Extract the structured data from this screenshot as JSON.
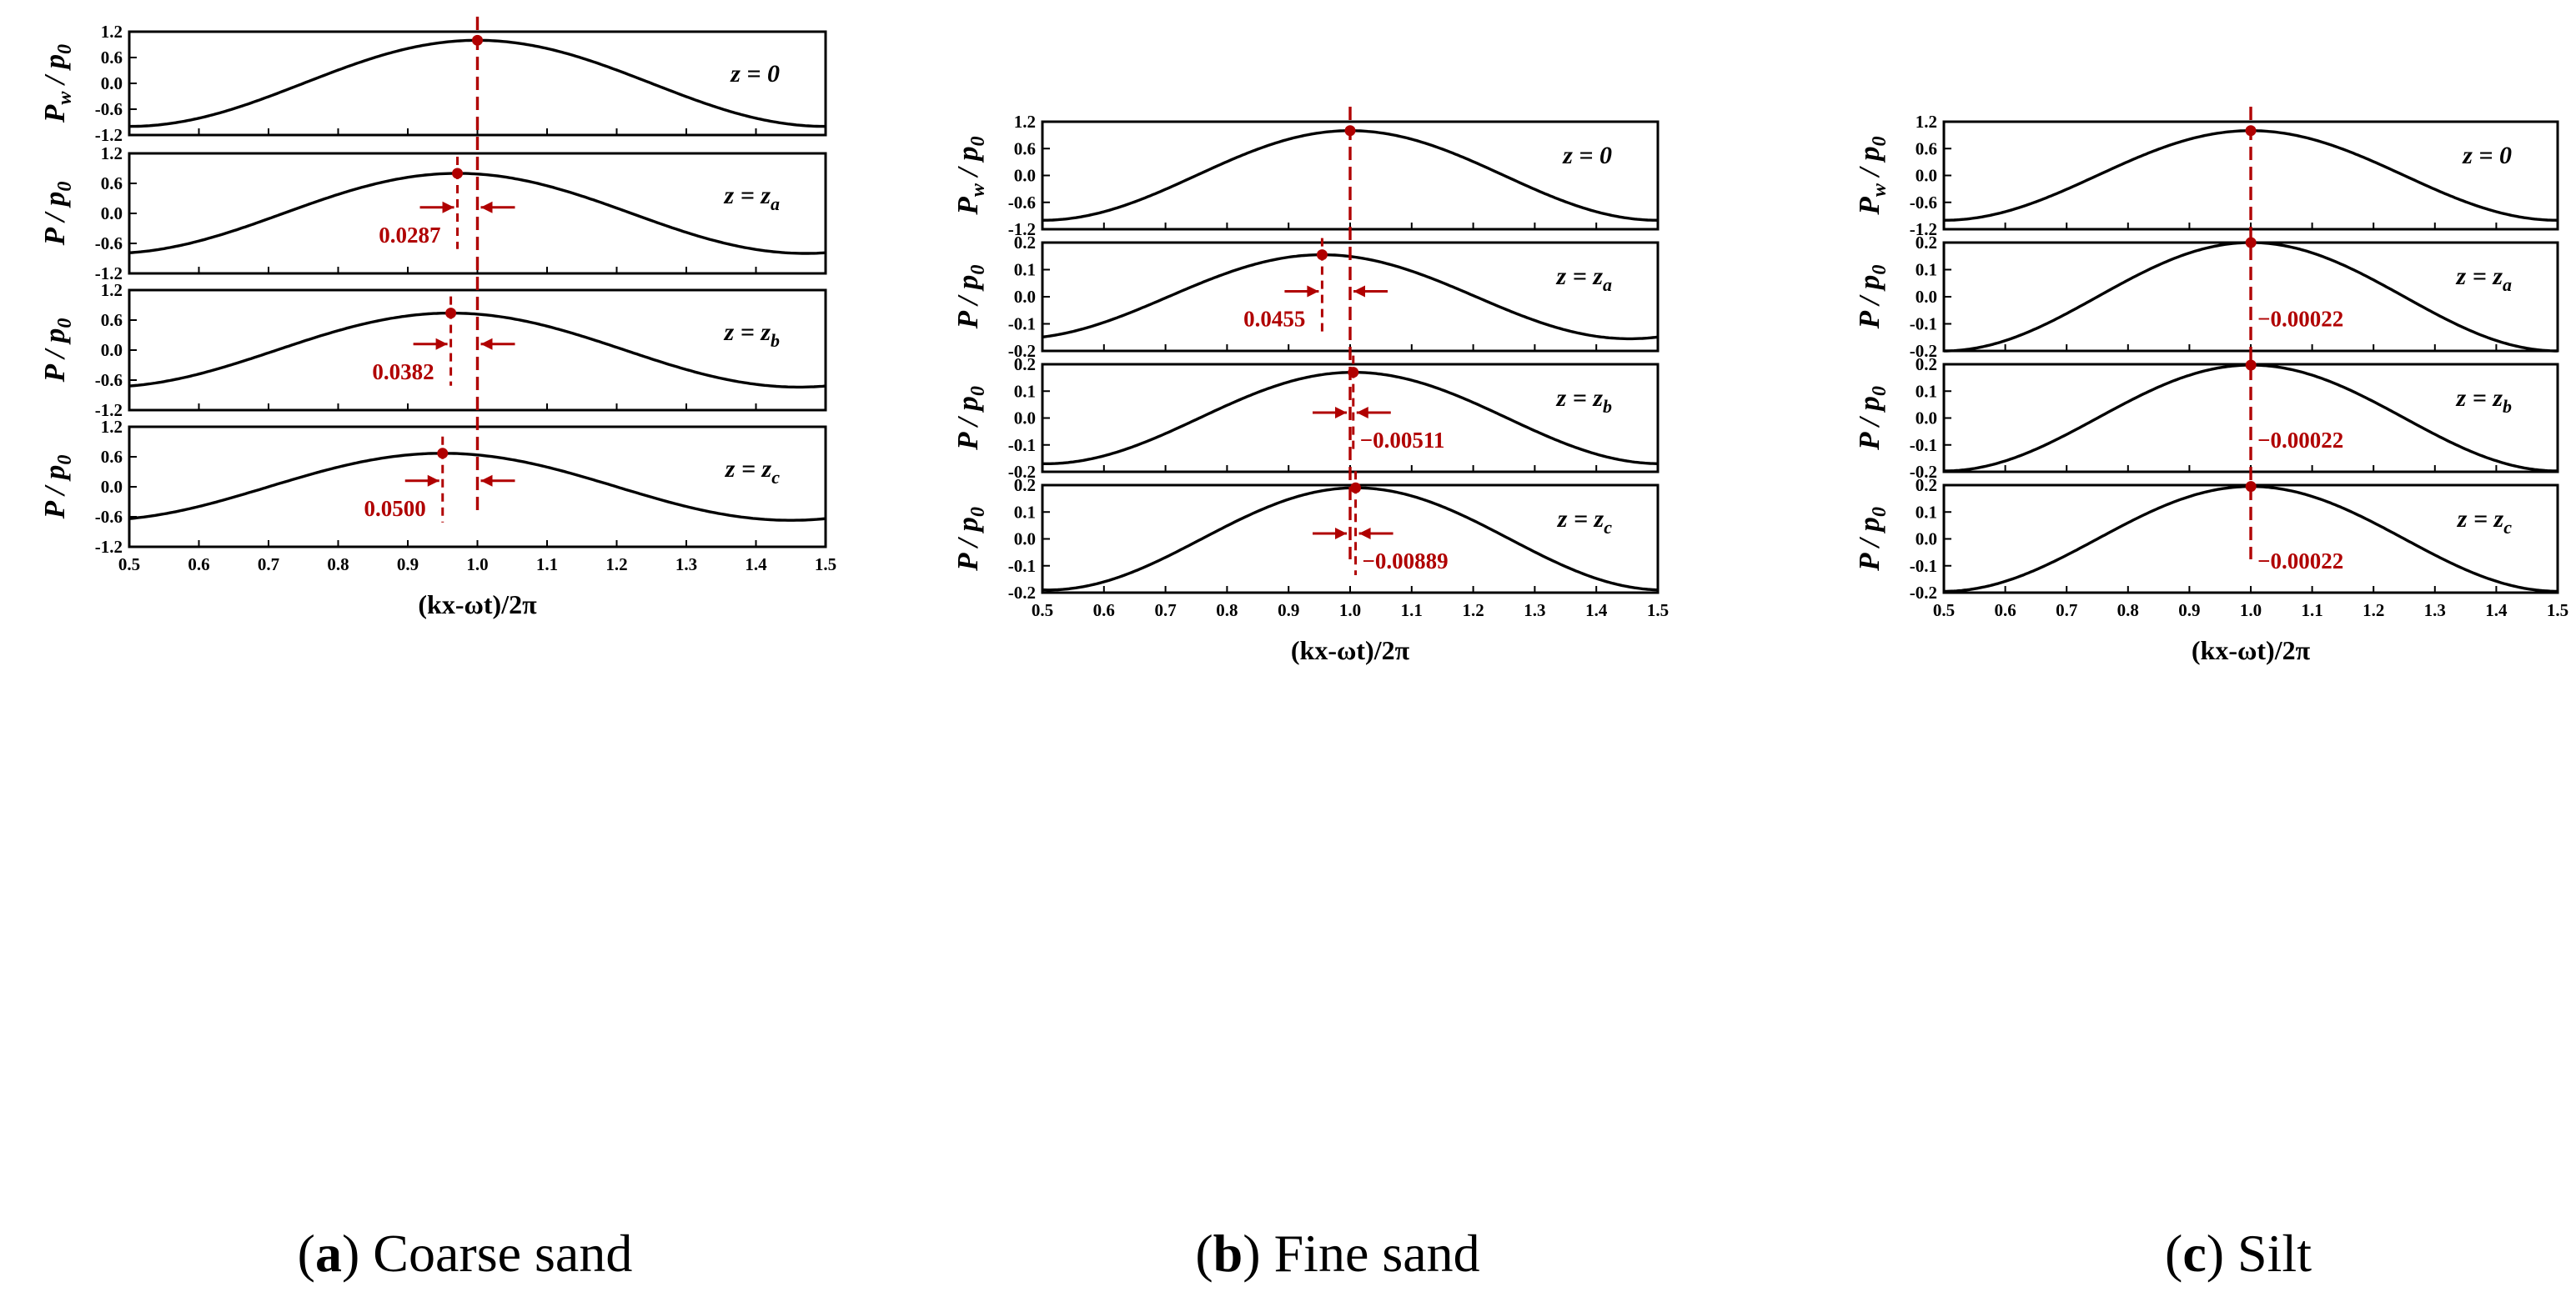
{
  "colors": {
    "curve": "#000000",
    "marker": "#b00000"
  },
  "x_axis": {
    "ticks": [
      "0.5",
      "0.6",
      "0.7",
      "0.8",
      "0.9",
      "1.0",
      "1.1",
      "1.2",
      "1.3",
      "1.4",
      "1.5"
    ]
  },
  "chart_data": [
    {
      "type": "line",
      "caption_letter": "a",
      "caption_text": "Coarse sand",
      "xlabel": "(kx-ωt)/2π",
      "xlim": [
        0.5,
        1.5
      ],
      "panels": [
        {
          "ylabel": "P_w / p_0",
          "annotation": "z = 0",
          "ylim": [
            -1.2,
            1.2
          ],
          "yticks": [
            "1.2",
            "0.6",
            "0.0",
            "-0.6",
            "-1.2"
          ],
          "amplitude": 1.0,
          "peak_x": 1.0,
          "phase_shift": null
        },
        {
          "ylabel": "P / p_0",
          "annotation": "z = z_a",
          "ylim": [
            -1.2,
            1.2
          ],
          "yticks": [
            "1.2",
            "0.6",
            "0.0",
            "-0.6",
            "-1.2"
          ],
          "amplitude": 0.8,
          "peak_x": 0.9713,
          "phase_shift": "0.0287"
        },
        {
          "ylabel": "P / p_0",
          "annotation": "z = z_b",
          "ylim": [
            -1.2,
            1.2
          ],
          "yticks": [
            "1.2",
            "0.6",
            "0.0",
            "-0.6",
            "-1.2"
          ],
          "amplitude": 0.74,
          "peak_x": 0.9618,
          "phase_shift": "0.0382"
        },
        {
          "ylabel": "P / p_0",
          "annotation": "z = z_c",
          "ylim": [
            -1.2,
            1.2
          ],
          "yticks": [
            "1.2",
            "0.6",
            "0.0",
            "-0.6",
            "-1.2"
          ],
          "amplitude": 0.67,
          "peak_x": 0.95,
          "phase_shift": "0.0500"
        }
      ]
    },
    {
      "type": "line",
      "caption_letter": "b",
      "caption_text": "Fine sand",
      "xlabel": "(kx-ωt)/2π",
      "xlim": [
        0.5,
        1.5
      ],
      "panels": [
        {
          "ylabel": "P_w / p_0",
          "annotation": "z = 0",
          "ylim": [
            -1.2,
            1.2
          ],
          "yticks": [
            "1.2",
            "0.6",
            "0.0",
            "-0.6",
            "-1.2"
          ],
          "amplitude": 1.0,
          "peak_x": 1.0,
          "phase_shift": null
        },
        {
          "ylabel": "P / p_0",
          "annotation": "z = z_a",
          "ylim": [
            -0.2,
            0.2
          ],
          "yticks": [
            "0.2",
            "0.1",
            "0.0",
            "-0.1",
            "-0.2"
          ],
          "amplitude": 0.155,
          "peak_x": 0.9545,
          "phase_shift": "0.0455"
        },
        {
          "ylabel": "P / p_0",
          "annotation": "z = z_b",
          "ylim": [
            -0.2,
            0.2
          ],
          "yticks": [
            "0.2",
            "0.1",
            "0.0",
            "-0.1",
            "-0.2"
          ],
          "amplitude": 0.17,
          "peak_x": 1.00511,
          "phase_shift": "−0.00511"
        },
        {
          "ylabel": "P / p_0",
          "annotation": "z = z_c",
          "ylim": [
            -0.2,
            0.2
          ],
          "yticks": [
            "0.2",
            "0.1",
            "0.0",
            "-0.1",
            "-0.2"
          ],
          "amplitude": 0.19,
          "peak_x": 1.00889,
          "phase_shift": "−0.00889"
        }
      ]
    },
    {
      "type": "line",
      "caption_letter": "c",
      "caption_text": "Silt",
      "xlabel": "(kx-ωt)/2π",
      "xlim": [
        0.5,
        1.5
      ],
      "panels": [
        {
          "ylabel": "P_w / p_0",
          "annotation": "z = 0",
          "ylim": [
            -1.2,
            1.2
          ],
          "yticks": [
            "1.2",
            "0.6",
            "0.0",
            "-0.6",
            "-1.2"
          ],
          "amplitude": 1.0,
          "peak_x": 1.0,
          "phase_shift": null
        },
        {
          "ylabel": "P / p_0",
          "annotation": "z = z_a",
          "ylim": [
            -0.2,
            0.2
          ],
          "yticks": [
            "0.2",
            "0.1",
            "0.0",
            "-0.1",
            "-0.2"
          ],
          "amplitude": 0.2,
          "peak_x": 1.00022,
          "phase_shift": "−0.00022"
        },
        {
          "ylabel": "P / p_0",
          "annotation": "z = z_b",
          "ylim": [
            -0.2,
            0.2
          ],
          "yticks": [
            "0.2",
            "0.1",
            "0.0",
            "-0.1",
            "-0.2"
          ],
          "amplitude": 0.197,
          "peak_x": 1.00022,
          "phase_shift": "−0.00022"
        },
        {
          "ylabel": "P / p_0",
          "annotation": "z = z_c",
          "ylim": [
            -0.2,
            0.2
          ],
          "yticks": [
            "0.2",
            "0.1",
            "0.0",
            "-0.1",
            "-0.2"
          ],
          "amplitude": 0.195,
          "peak_x": 1.00022,
          "phase_shift": "−0.00022"
        }
      ]
    }
  ]
}
